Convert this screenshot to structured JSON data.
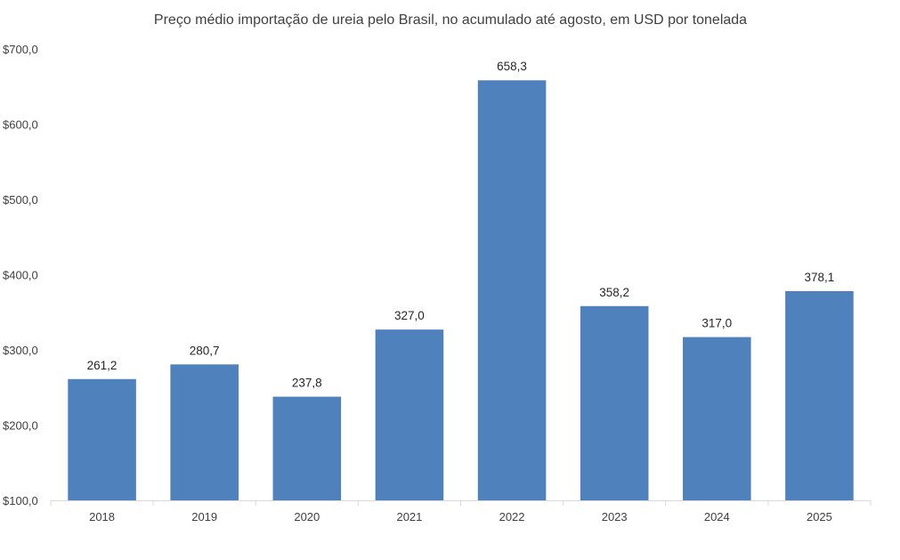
{
  "chart_data": {
    "type": "bar",
    "title": "Preço médio importação de ureia pelo Brasil, no acumulado até agosto, em USD por tonelada",
    "xlabel": "",
    "ylabel": "",
    "categories": [
      "2018",
      "2019",
      "2020",
      "2021",
      "2022",
      "2023",
      "2024",
      "2025"
    ],
    "values": [
      261.2,
      280.7,
      237.8,
      327.0,
      658.3,
      358.2,
      317.0,
      378.1
    ],
    "value_labels": [
      "261,2",
      "280,7",
      "237,8",
      "327,0",
      "658,3",
      "358,2",
      "317,0",
      "378,1"
    ],
    "ylim": [
      100,
      700
    ],
    "yticks": [
      100,
      200,
      300,
      400,
      500,
      600,
      700
    ],
    "ytick_labels": [
      "$100,0",
      "$200,0",
      "$300,0",
      "$400,0",
      "$500,0",
      "$600,0",
      "$700,0"
    ],
    "grid": false,
    "legend": "none",
    "colors": {
      "bar": "#4f81bd",
      "axis": "#d9d9d9",
      "text": "#404040"
    }
  }
}
